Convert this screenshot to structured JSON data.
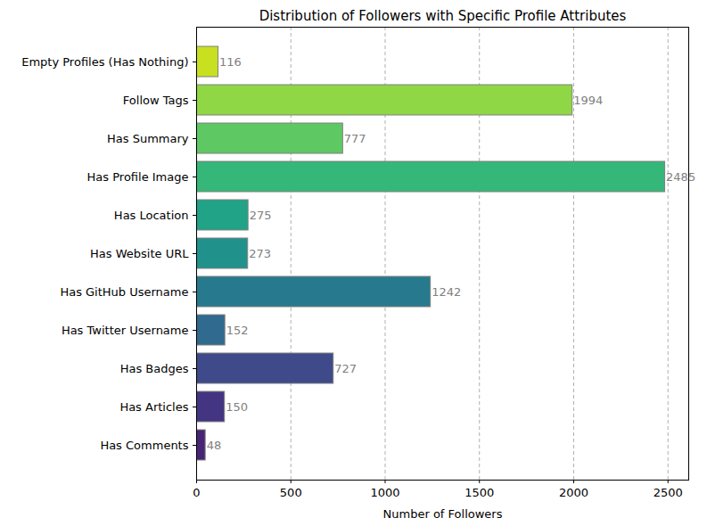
{
  "chart_data": {
    "type": "bar",
    "orientation": "horizontal",
    "title": "Distribution of Followers with Specific Profile Attributes",
    "x_label": "Number of Followers",
    "categories": [
      "Empty Profiles (Has Nothing)",
      "Follow Tags",
      "Has Summary",
      "Has Profile Image",
      "Has Location",
      "Has Website URL",
      "Has GitHub Username",
      "Has Twitter Username",
      "Has Badges",
      "Has Articles",
      "Has Comments"
    ],
    "values": [
      116,
      1994,
      777,
      2485,
      275,
      273,
      1242,
      152,
      727,
      150,
      48
    ],
    "colors": [
      "#c8e020",
      "#8fd744",
      "#5ec962",
      "#35b779",
      "#20a386",
      "#21918c",
      "#277a8e",
      "#306a8e",
      "#3e4a89",
      "#433581",
      "#482475"
    ],
    "xlim": [
      0,
      2610
    ],
    "xticks": [
      0,
      500,
      1000,
      1500,
      2000,
      2500
    ],
    "grid": true,
    "data_labels": true
  }
}
